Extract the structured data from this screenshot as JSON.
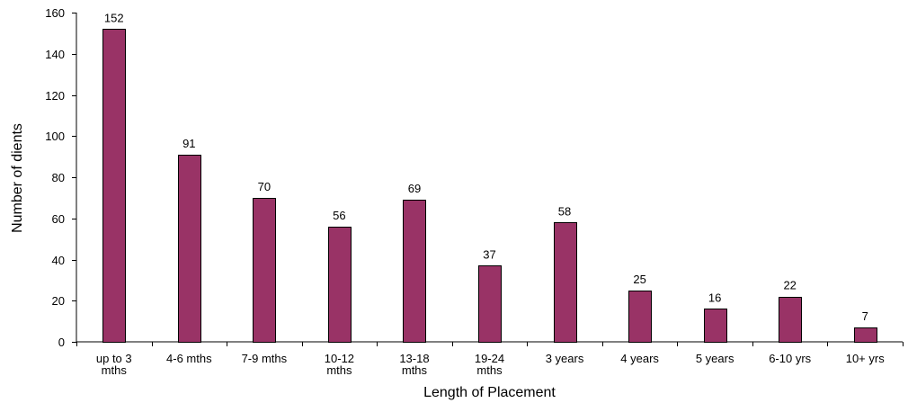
{
  "chart_data": {
    "type": "bar",
    "title": "",
    "xlabel": "Length of Placement",
    "ylabel": "Number of dients",
    "ylim": [
      0,
      160
    ],
    "y_ticks": [
      0,
      20,
      40,
      60,
      80,
      100,
      120,
      140,
      160
    ],
    "grid": false,
    "legend": "none",
    "bar_color": "#993366",
    "categories": [
      [
        "up to 3",
        "mths"
      ],
      [
        "4-6 mths"
      ],
      [
        "7-9 mths"
      ],
      [
        "10-12",
        "mths"
      ],
      [
        "13-18",
        "mths"
      ],
      [
        "19-24",
        "mths"
      ],
      [
        "3 years"
      ],
      [
        "4 years"
      ],
      [
        "5 years"
      ],
      [
        "6-10 yrs"
      ],
      [
        "10+ yrs"
      ]
    ],
    "values": [
      152,
      91,
      70,
      56,
      69,
      37,
      58,
      25,
      16,
      22,
      7
    ]
  }
}
